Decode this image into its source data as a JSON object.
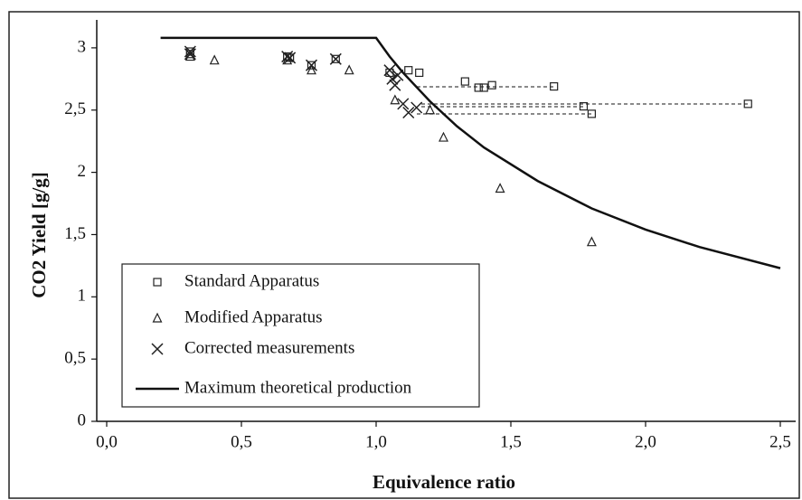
{
  "chart_data": {
    "type": "scatter",
    "xlabel": "Equivalence ratio",
    "ylabel": "CO2 Yield  [g/g]",
    "xlim": [
      0,
      2.5
    ],
    "ylim": [
      0,
      3.1
    ],
    "xticks": [
      {
        "value": 0,
        "label": "0,0"
      },
      {
        "value": 0.5,
        "label": "0,5"
      },
      {
        "value": 1,
        "label": "1,0"
      },
      {
        "value": 1.5,
        "label": "1,5"
      },
      {
        "value": 2,
        "label": "2,0"
      },
      {
        "value": 2.5,
        "label": "2,5"
      }
    ],
    "yticks": [
      0,
      {
        "value": 0.5,
        "label": "0,5"
      },
      1,
      {
        "value": 1.5,
        "label": "1,5"
      },
      2,
      {
        "value": 2.5,
        "label": "2,5"
      },
      3
    ],
    "legend": "lower left",
    "series": [
      {
        "name": "Standard Apparatus",
        "marker": "square",
        "color": "#222",
        "x": [
          0.31,
          0.31,
          0.67,
          0.68,
          0.76,
          0.85,
          1.05,
          1.12,
          1.16,
          1.33,
          1.38,
          1.4,
          1.43,
          1.66,
          1.77,
          1.8,
          2.38
        ],
        "values": [
          2.97,
          2.95,
          2.93,
          2.92,
          2.86,
          2.91,
          2.8,
          2.82,
          2.8,
          2.73,
          2.68,
          2.68,
          2.7,
          2.69,
          2.53,
          2.47,
          2.55
        ]
      },
      {
        "name": "Modified Apparatus",
        "marker": "triangle",
        "color": "#222",
        "x": [
          0.31,
          0.4,
          0.67,
          0.76,
          0.9,
          1.07,
          1.2,
          1.25,
          1.46,
          1.8
        ],
        "values": [
          2.93,
          2.9,
          2.9,
          2.82,
          2.82,
          2.58,
          2.5,
          2.28,
          1.87,
          1.44
        ]
      },
      {
        "name": "Corrected measurements",
        "marker": "x",
        "color": "#222",
        "x": [
          0.31,
          0.31,
          0.67,
          0.68,
          0.76,
          0.85,
          1.05,
          1.06,
          1.07,
          1.08,
          1.1,
          1.12,
          1.15
        ],
        "values": [
          2.97,
          2.95,
          2.93,
          2.92,
          2.86,
          2.91,
          2.82,
          2.75,
          2.7,
          2.78,
          2.55,
          2.48,
          2.52
        ]
      },
      {
        "name": "Maximum theoretical production",
        "marker": "line",
        "color": "#111",
        "x": [
          0.2,
          1.0,
          1.05,
          1.1,
          1.2,
          1.3,
          1.4,
          1.6,
          1.8,
          2.0,
          2.2,
          2.5
        ],
        "values": [
          3.08,
          3.08,
          2.93,
          2.8,
          2.57,
          2.37,
          2.2,
          1.93,
          1.71,
          1.54,
          1.4,
          1.23
        ]
      }
    ]
  }
}
